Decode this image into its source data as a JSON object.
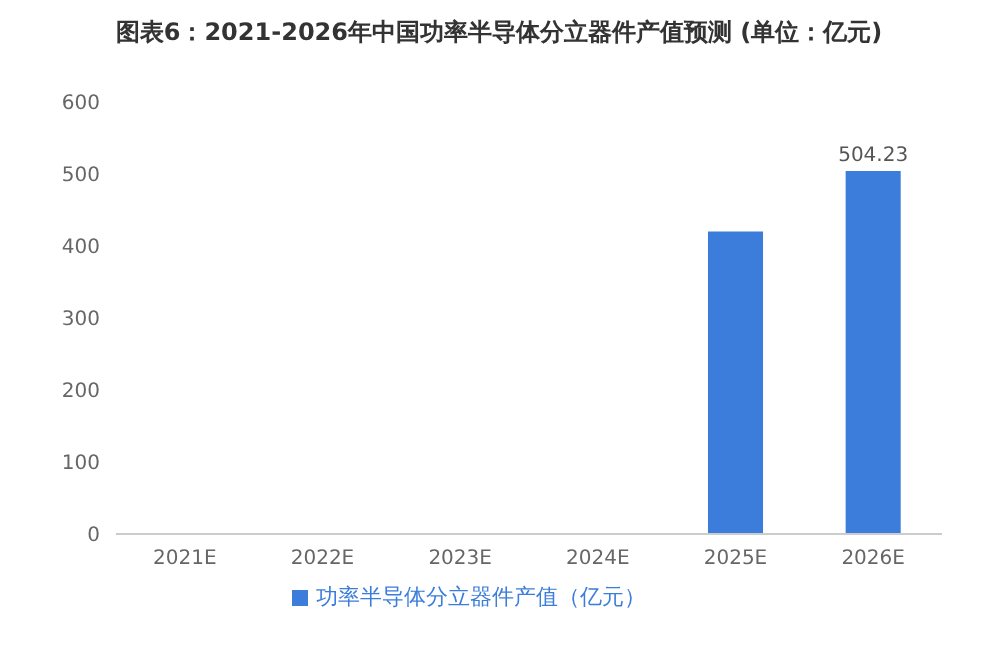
{
  "chart_data": {
    "type": "bar",
    "title": "图表6：2021-2026年中国功率半导体分立器件产值预测 (单位：亿元)",
    "categories": [
      "2021E",
      "2022E",
      "2023E",
      "2024E",
      "2025E",
      "2026E"
    ],
    "series": [
      {
        "name": "功率半导体分立器件产值（亿元）",
        "color": "#3c7ddb",
        "values": [
          null,
          null,
          null,
          null,
          420,
          504.23
        ],
        "value_labels": [
          null,
          null,
          null,
          null,
          null,
          "504.23"
        ]
      }
    ],
    "ylim": [
      0,
      600
    ],
    "yticks": [
      0,
      100,
      200,
      300,
      400,
      500,
      600
    ],
    "grid": false,
    "legend": "bottom"
  }
}
